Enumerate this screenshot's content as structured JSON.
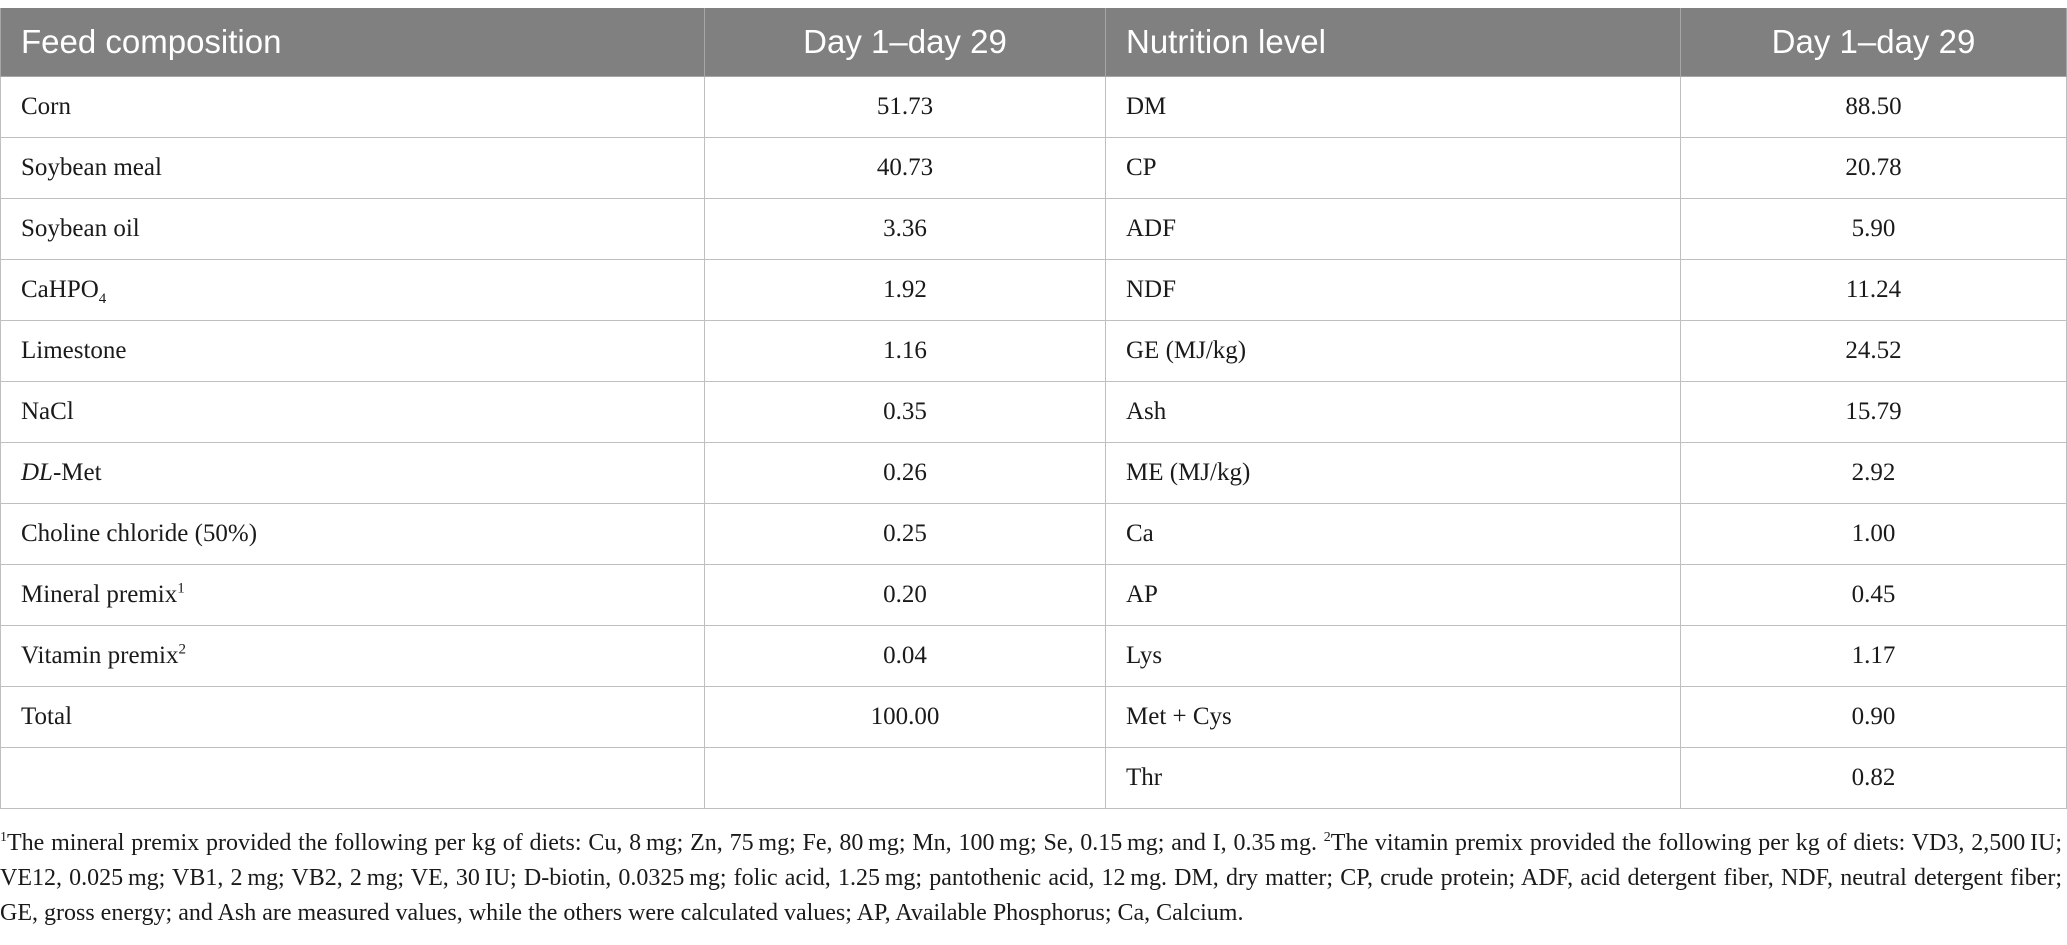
{
  "table": {
    "headers": [
      "Feed composition",
      "Day 1–day 29",
      "Nutrition level",
      "Day 1–day 29"
    ],
    "rows": [
      {
        "ingredient": "Corn",
        "ingredient_value": "51.73",
        "nutrient": "DM",
        "nutrient_value": "88.50"
      },
      {
        "ingredient": "Soybean meal",
        "ingredient_value": "40.73",
        "nutrient": "CP",
        "nutrient_value": "20.78"
      },
      {
        "ingredient": "Soybean oil",
        "ingredient_value": "3.36",
        "nutrient": "ADF",
        "nutrient_value": "5.90"
      },
      {
        "ingredient": "CaHPO",
        "ingredient_sub": "4",
        "ingredient_value": "1.92",
        "nutrient": "NDF",
        "nutrient_value": "11.24"
      },
      {
        "ingredient": "Limestone",
        "ingredient_value": "1.16",
        "nutrient": "GE (MJ/kg)",
        "nutrient_value": "24.52"
      },
      {
        "ingredient": "NaCl",
        "ingredient_value": "0.35",
        "nutrient": "Ash",
        "nutrient_value": "15.79"
      },
      {
        "ingredient_italic": "DL",
        "ingredient": "-Met",
        "ingredient_value": "0.26",
        "nutrient": "ME (MJ/kg)",
        "nutrient_value": "2.92"
      },
      {
        "ingredient": "Choline chloride (50%)",
        "ingredient_value": "0.25",
        "nutrient": "Ca",
        "nutrient_value": "1.00"
      },
      {
        "ingredient": "Mineral premix",
        "ingredient_sup": "1",
        "ingredient_value": "0.20",
        "nutrient": "AP",
        "nutrient_value": "0.45"
      },
      {
        "ingredient": "Vitamin premix",
        "ingredient_sup": "2",
        "ingredient_value": "0.04",
        "nutrient": "Lys",
        "nutrient_value": "1.17"
      },
      {
        "ingredient": "Total",
        "ingredient_value": "100.00",
        "nutrient": "Met + Cys",
        "nutrient_value": "0.90"
      },
      {
        "ingredient": "",
        "ingredient_value": "",
        "nutrient": "Thr",
        "nutrient_value": "0.82"
      }
    ]
  },
  "footnote": {
    "mark1": "1",
    "text1": "The mineral premix provided the following per kg of diets: Cu, 8 mg; Zn, 75 mg; Fe, 80 mg; Mn, 100 mg; Se, 0.15 mg; and I, 0.35 mg. ",
    "mark2": "2",
    "text2": "The vitamin premix provided the following per kg of diets: VD3, 2,500 IU; VE12, 0.025 mg; VB1, 2 mg; VB2, 2 mg; VE, 30 IU; D-biotin, 0.0325 mg; folic acid, 1.25 mg; pantothenic acid, 12 mg. DM, dry matter; CP, crude protein; ADF, acid detergent fiber, NDF, neutral detergent fiber; GE, gross energy; and Ash are measured values, while the others were calculated values; AP, Available Phosphorus; Ca, Calcium."
  }
}
